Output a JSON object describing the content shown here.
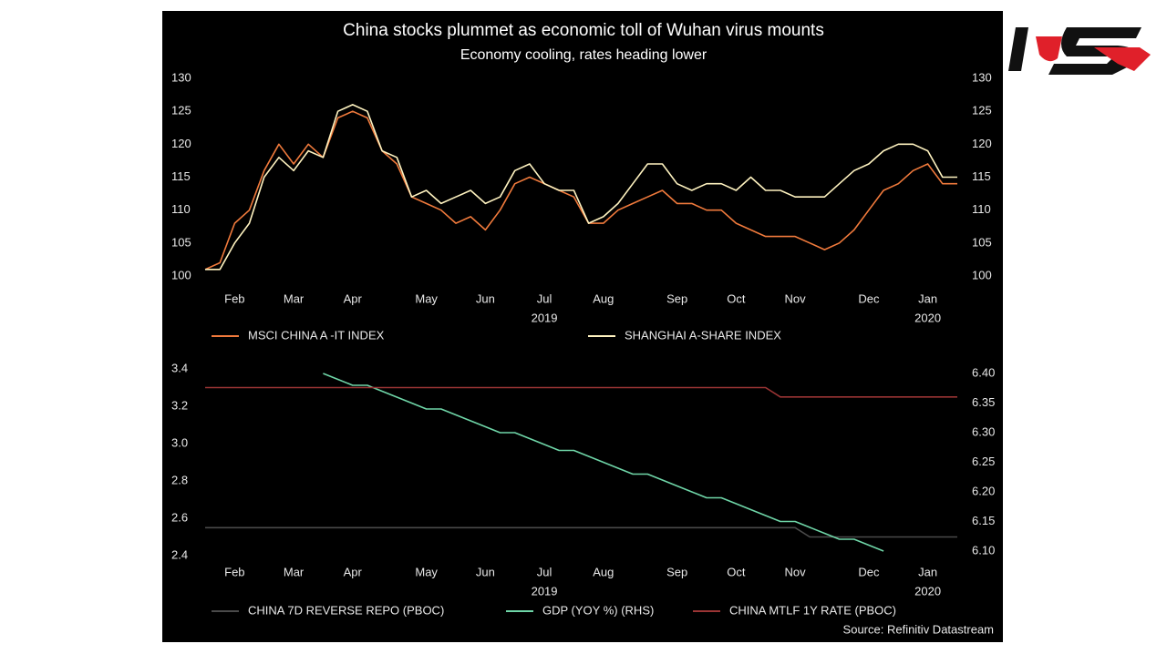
{
  "chart_data": [
    {
      "type": "line",
      "title": "China stocks plummet as economic toll of Wuhan virus mounts",
      "subtitle": "Economy cooling, rates heading lower",
      "categories": [
        null,
        null,
        "Feb",
        null,
        null,
        null,
        "Mar",
        null,
        null,
        null,
        "Apr",
        null,
        null,
        null,
        null,
        "May",
        null,
        null,
        null,
        "Jun",
        null,
        null,
        null,
        "Jul",
        null,
        null,
        null,
        "Aug",
        null,
        null,
        null,
        null,
        "Sep",
        null,
        null,
        null,
        "Oct",
        null,
        null,
        null,
        "Nov",
        null,
        null,
        null,
        null,
        "Dec",
        null,
        null,
        null,
        "Jan",
        null,
        null
      ],
      "annotations": [
        "2019",
        "2020"
      ],
      "series": [
        {
          "name": "MSCI CHINA A -IT INDEX",
          "color": "#f07a3c",
          "values": [
            101,
            102,
            108,
            110,
            116,
            120,
            117,
            120,
            118,
            124,
            125,
            124,
            119,
            117,
            112,
            111,
            110,
            108,
            109,
            107,
            110,
            114,
            115,
            114,
            113,
            112,
            108,
            108,
            110,
            111,
            112,
            113,
            111,
            111,
            110,
            110,
            108,
            107,
            106,
            106,
            106,
            105,
            104,
            105,
            107,
            110,
            113,
            114,
            116,
            117,
            114,
            114
          ]
        },
        {
          "name": "SHANGHAI A-SHARE INDEX",
          "color": "#fff3c0",
          "values": [
            101,
            101,
            105,
            108,
            115,
            118,
            116,
            119,
            118,
            125,
            126,
            125,
            119,
            118,
            112,
            113,
            111,
            112,
            113,
            111,
            112,
            116,
            117,
            114,
            113,
            113,
            108,
            109,
            111,
            114,
            117,
            117,
            114,
            113,
            114,
            114,
            113,
            115,
            113,
            113,
            112,
            112,
            112,
            114,
            116,
            117,
            119,
            120,
            120,
            119,
            115,
            115
          ]
        }
      ],
      "ylim": [
        100,
        130
      ],
      "yticks": [
        100,
        105,
        110,
        115,
        120,
        125,
        130
      ],
      "y2lim": [
        100,
        130
      ],
      "y2ticks": [
        100,
        105,
        110,
        115,
        120,
        125,
        130
      ]
    },
    {
      "type": "line",
      "categories": [
        null,
        null,
        "Feb",
        null,
        null,
        null,
        "Mar",
        null,
        null,
        null,
        "Apr",
        null,
        null,
        null,
        null,
        "May",
        null,
        null,
        null,
        "Jun",
        null,
        null,
        null,
        "Jul",
        null,
        null,
        null,
        "Aug",
        null,
        null,
        null,
        null,
        "Sep",
        null,
        null,
        null,
        "Oct",
        null,
        null,
        null,
        "Nov",
        null,
        null,
        null,
        null,
        "Dec",
        null,
        null,
        null,
        "Jan",
        null,
        null
      ],
      "annotations": [
        "2019",
        "2020"
      ],
      "series": [
        {
          "name": "CHINA 7D REVERSE REPO (PBOC)",
          "color": "#4a4a4a",
          "values": [
            2.55,
            2.55,
            2.55,
            2.55,
            2.55,
            2.55,
            2.55,
            2.55,
            2.55,
            2.55,
            2.55,
            2.55,
            2.55,
            2.55,
            2.55,
            2.55,
            2.55,
            2.55,
            2.55,
            2.55,
            2.55,
            2.55,
            2.55,
            2.55,
            2.55,
            2.55,
            2.55,
            2.55,
            2.55,
            2.55,
            2.55,
            2.55,
            2.55,
            2.55,
            2.55,
            2.55,
            2.55,
            2.55,
            2.55,
            2.55,
            2.55,
            2.5,
            2.5,
            2.5,
            2.5,
            2.5,
            2.5,
            2.5,
            2.5,
            2.5,
            2.5,
            2.5
          ]
        },
        {
          "name": "GDP (YOY %) (RHS)",
          "color": "#6fd6a8",
          "axis": "y2",
          "values": [
            null,
            null,
            null,
            null,
            null,
            null,
            null,
            null,
            6.4,
            6.39,
            6.38,
            6.38,
            6.37,
            6.36,
            6.35,
            6.34,
            6.34,
            6.33,
            6.32,
            6.31,
            6.3,
            6.3,
            6.29,
            6.28,
            6.27,
            6.27,
            6.26,
            6.25,
            6.24,
            6.23,
            6.23,
            6.22,
            6.21,
            6.2,
            6.19,
            6.19,
            6.18,
            6.17,
            6.16,
            6.15,
            6.15,
            6.14,
            6.13,
            6.12,
            6.12,
            6.11,
            6.1,
            null,
            null,
            null,
            null,
            null
          ]
        },
        {
          "name": "CHINA MTLF 1Y RATE (PBOC)",
          "color": "#9a3434",
          "values": [
            3.3,
            3.3,
            3.3,
            3.3,
            3.3,
            3.3,
            3.3,
            3.3,
            3.3,
            3.3,
            3.3,
            3.3,
            3.3,
            3.3,
            3.3,
            3.3,
            3.3,
            3.3,
            3.3,
            3.3,
            3.3,
            3.3,
            3.3,
            3.3,
            3.3,
            3.3,
            3.3,
            3.3,
            3.3,
            3.3,
            3.3,
            3.3,
            3.3,
            3.3,
            3.3,
            3.3,
            3.3,
            3.3,
            3.3,
            3.25,
            3.25,
            3.25,
            3.25,
            3.25,
            3.25,
            3.25,
            3.25,
            3.25,
            3.25,
            3.25,
            3.25,
            3.25
          ]
        }
      ],
      "ylim": [
        2.4,
        3.4
      ],
      "yticks": [
        2.4,
        2.6,
        2.8,
        {
          "value": 3,
          "label": "3.0"
        },
        3.2,
        3.4
      ],
      "y2lim": [
        6.1,
        6.4
      ],
      "y2ticks": [
        {
          "value": 6.1,
          "label": "6.10"
        },
        6.15,
        {
          "value": 6.2,
          "label": "6.20"
        },
        6.25,
        {
          "value": 6.3,
          "label": "6.30"
        },
        6.35,
        {
          "value": 6.4,
          "label": "6.40"
        }
      ]
    }
  ],
  "source": "Source: Refinitiv Datastream"
}
